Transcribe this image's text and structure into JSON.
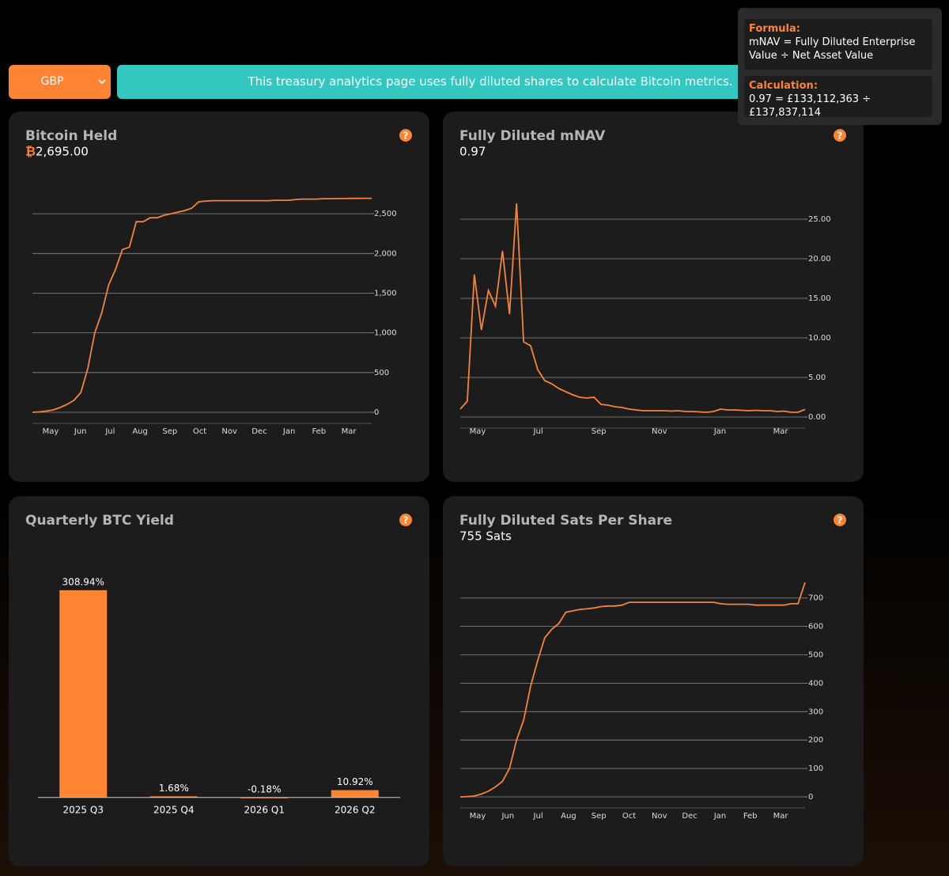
{
  "selector": "GBP",
  "banner": "This treasury analytics page uses fully diluted shares to calculate Bitcoin metrics.",
  "tooltip": {
    "formula_title": "Formula:",
    "formula": "mNAV = Fully Diluted Enterprise Value ÷ Net Asset Value",
    "calculation_title": "Calculation:",
    "calculation": "0.97 = £133,112,363 ÷ £137,837,114"
  },
  "help_icon": "?",
  "chart_data": [
    {
      "type": "line",
      "title": "Bitcoin Held",
      "currency_symbol": "₿",
      "subtitle": "2,695.00",
      "color": "#f5843a",
      "xtick_labels": [
        "May",
        "Jun",
        "Jul",
        "Aug",
        "Sep",
        "Oct",
        "Nov",
        "Dec",
        "Jan",
        "Feb",
        "Mar"
      ],
      "values": [
        0,
        5,
        15,
        30,
        60,
        100,
        150,
        250,
        550,
        1000,
        1250,
        1600,
        1800,
        2050,
        2080,
        2400,
        2400,
        2450,
        2450,
        2480,
        2500,
        2520,
        2540,
        2570,
        2650,
        2660,
        2665,
        2665,
        2665,
        2665,
        2665,
        2665,
        2665,
        2665,
        2665,
        2670,
        2670,
        2670,
        2680,
        2685,
        2685,
        2685,
        2690,
        2690,
        2692,
        2692,
        2694,
        2694,
        2695,
        2695
      ],
      "ylim": [
        0,
        2900
      ],
      "yticks": [
        0,
        500,
        {
          "value": 1000,
          "label": "1,000"
        },
        {
          "value": 1500,
          "label": "1,500"
        },
        {
          "value": 2000,
          "label": "2,000"
        },
        {
          "value": 2500,
          "label": "2,500"
        }
      ],
      "grid": true
    },
    {
      "type": "line",
      "title": "Fully Diluted mNAV",
      "subtitle": "0.97",
      "color": "#f5843a",
      "xtick_labels": [
        "May",
        "Jul",
        "Sep",
        "Nov",
        "Jan",
        "Mar"
      ],
      "values": [
        1.0,
        2.0,
        18,
        11,
        16,
        14,
        21,
        13,
        27,
        9.5,
        9,
        6,
        4.6,
        4.2,
        3.6,
        3.2,
        2.8,
        2.5,
        2.4,
        2.5,
        1.6,
        1.5,
        1.3,
        1.2,
        1.0,
        0.9,
        0.8,
        0.8,
        0.8,
        0.8,
        0.75,
        0.8,
        0.7,
        0.7,
        0.65,
        0.6,
        0.7,
        1.0,
        0.9,
        0.9,
        0.85,
        0.8,
        0.85,
        0.8,
        0.8,
        0.7,
        0.75,
        0.6,
        0.6,
        0.97
      ],
      "ylim": [
        0,
        28
      ],
      "yticks": [
        {
          "value": 0,
          "label": "0.00"
        },
        {
          "value": 5,
          "label": "5.00"
        },
        {
          "value": 10,
          "label": "10.00"
        },
        {
          "value": 15,
          "label": "15.00"
        },
        {
          "value": 20,
          "label": "20.00"
        },
        {
          "value": 25,
          "label": "25.00"
        }
      ],
      "grid": true
    },
    {
      "type": "bar",
      "title": "Quarterly BTC Yield",
      "color": "#fd8433",
      "categories": [
        "2025 Q3",
        "2025 Q4",
        "2026 Q1",
        "2026 Q2"
      ],
      "values": [
        308.94,
        1.68,
        -0.18,
        10.92
      ],
      "value_labels": [
        "308.94%",
        "1.68%",
        "-0.18%",
        "10.92%"
      ],
      "ylim": [
        -5,
        330
      ]
    },
    {
      "type": "line",
      "title": "Fully Diluted Sats Per Share",
      "subtitle": "755 Sats",
      "color": "#f5843a",
      "xtick_labels": [
        "May",
        "Jun",
        "Jul",
        "Aug",
        "Sep",
        "Oct",
        "Nov",
        "Dec",
        "Jan",
        "Feb",
        "Mar"
      ],
      "values": [
        0,
        1,
        3,
        10,
        20,
        35,
        55,
        100,
        200,
        270,
        390,
        480,
        560,
        590,
        610,
        650,
        655,
        660,
        662,
        665,
        670,
        672,
        672,
        675,
        685,
        685,
        685,
        685,
        685,
        685,
        685,
        685,
        685,
        685,
        685,
        685,
        685,
        680,
        678,
        678,
        678,
        678,
        675,
        675,
        675,
        675,
        675,
        680,
        680,
        755
      ],
      "ylim": [
        0,
        780
      ],
      "yticks": [
        0,
        100,
        200,
        300,
        400,
        500,
        600,
        700
      ],
      "grid": true
    }
  ]
}
